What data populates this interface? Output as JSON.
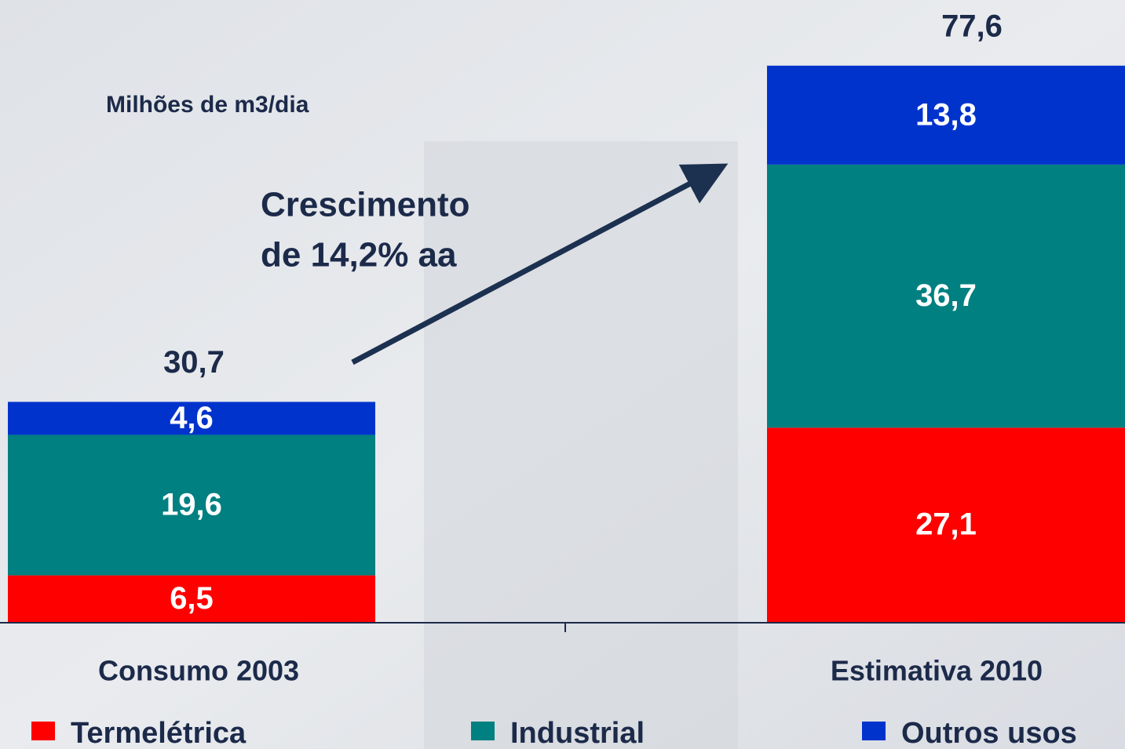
{
  "chart_data": {
    "type": "stacked_bar",
    "unit_label": "Milhões de m3/dia",
    "annotation": [
      "Crescimento",
      "de 14,2% aa"
    ],
    "categories": [
      "Consumo 2003",
      "Estimativa 2010"
    ],
    "series": [
      {
        "name": "Termelétrica",
        "color": "#ff0000",
        "values": [
          6.5,
          27.1
        ],
        "value_labels": [
          "6,5",
          "27,1"
        ]
      },
      {
        "name": "Industrial",
        "color": "#008080",
        "values": [
          19.6,
          36.7
        ],
        "value_labels": [
          "19,6",
          "36,7"
        ]
      },
      {
        "name": "Outros usos",
        "color": "#0033cc",
        "values": [
          4.6,
          13.8
        ],
        "value_labels": [
          "4,6",
          "13,8"
        ]
      }
    ],
    "totals": [
      30.7,
      77.6
    ],
    "total_labels": [
      "30,7",
      "77,6"
    ]
  }
}
